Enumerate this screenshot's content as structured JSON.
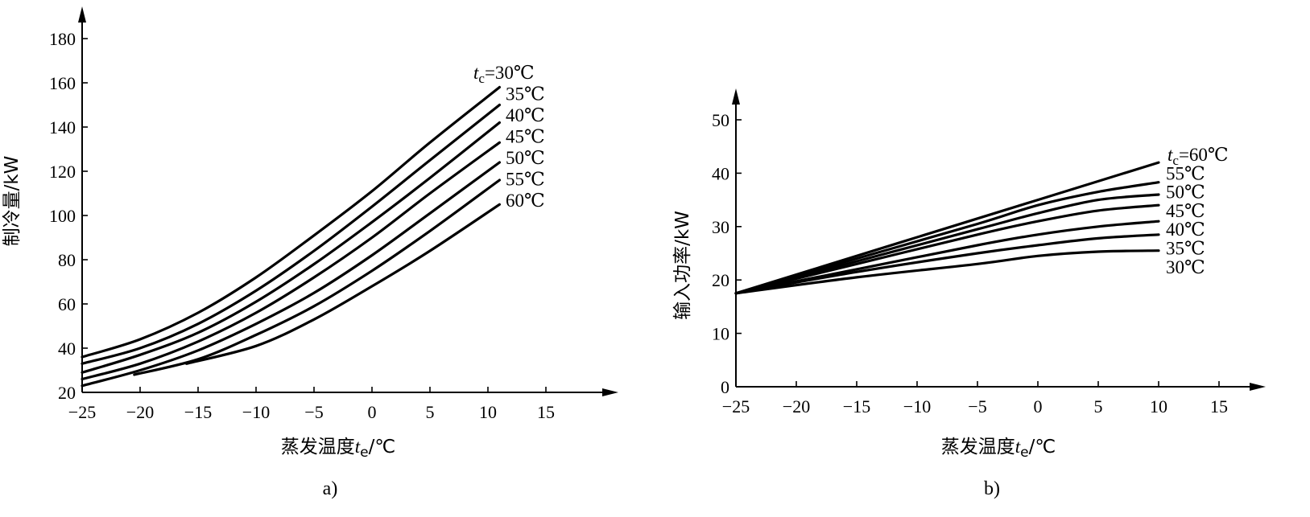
{
  "chart_data": [
    {
      "id": "a",
      "type": "line",
      "caption": "a)",
      "ylabel": "制冷量/kW",
      "xlabel_main": "蒸发温度",
      "xlabel_var": "t",
      "xlabel_sub": "e",
      "xlabel_unit": "/℃",
      "xlim": [
        -25,
        15
      ],
      "ylim": [
        20,
        180
      ],
      "x_ticks": [
        -25,
        -20,
        -15,
        -10,
        -5,
        0,
        5,
        10,
        15
      ],
      "x_tick_labels": [
        "−25",
        "−20",
        "−15",
        "−10",
        "−5",
        "0",
        "5",
        "10",
        "15"
      ],
      "y_ticks": [
        20,
        40,
        60,
        80,
        100,
        120,
        140,
        160,
        180
      ],
      "y_tick_labels": [
        "20",
        "40",
        "60",
        "80",
        "100",
        "120",
        "140",
        "160",
        "180"
      ],
      "series_prefix_var": "t",
      "series_prefix_sub": "c",
      "series_prefix_eq": "=",
      "series": [
        {
          "name": "30℃",
          "x": [
            -25,
            -20,
            -15,
            -10,
            -5,
            0,
            5,
            11
          ],
          "y": [
            36,
            44,
            56,
            72,
            91,
            111,
            133,
            158
          ]
        },
        {
          "name": "35℃",
          "x": [
            -25,
            -20,
            -15,
            -10,
            -5,
            0,
            5,
            11
          ],
          "y": [
            33,
            40,
            51,
            66,
            84,
            104,
            125,
            150
          ]
        },
        {
          "name": "40℃",
          "x": [
            -25,
            -20,
            -15,
            -10,
            -5,
            0,
            5,
            11
          ],
          "y": [
            29,
            37,
            47,
            61,
            78,
            97,
            117,
            142
          ]
        },
        {
          "name": "45℃",
          "x": [
            -25,
            -20,
            -15,
            -10,
            -5,
            0,
            5,
            11
          ],
          "y": [
            26,
            33,
            43,
            56,
            72,
            90,
            110,
            133
          ]
        },
        {
          "name": "50℃",
          "x": [
            -25,
            -20,
            -15,
            -10,
            -5,
            0,
            5,
            11
          ],
          "y": [
            23,
            30,
            39,
            51,
            65,
            82,
            101,
            124
          ]
        },
        {
          "name": "55℃",
          "x": [
            -20.5,
            -15,
            -10,
            -5,
            0,
            5,
            11
          ],
          "y": [
            28,
            35,
            46,
            59,
            75,
            93,
            116
          ]
        },
        {
          "name": "60℃",
          "x": [
            -16,
            -10,
            -5,
            0,
            5,
            11
          ],
          "y": [
            33,
            41,
            53,
            68,
            84,
            105
          ]
        }
      ]
    },
    {
      "id": "b",
      "type": "line",
      "caption": "b)",
      "ylabel": "输入功率/kW",
      "xlabel_main": "蒸发温度",
      "xlabel_var": "t",
      "xlabel_sub": "e",
      "xlabel_unit": "/℃",
      "xlim": [
        -25,
        15
      ],
      "ylim": [
        0,
        50
      ],
      "x_ticks": [
        -25,
        -20,
        -15,
        -10,
        -5,
        0,
        5,
        10,
        15
      ],
      "x_tick_labels": [
        "−25",
        "−20",
        "−15",
        "−10",
        "−5",
        "0",
        "5",
        "10",
        "15"
      ],
      "y_ticks": [
        0,
        10,
        20,
        30,
        40,
        50
      ],
      "y_tick_labels": [
        "0",
        "10",
        "20",
        "30",
        "40",
        "50"
      ],
      "series_prefix_var": "t",
      "series_prefix_sub": "c",
      "series_prefix_eq": "=",
      "series": [
        {
          "name": "60℃",
          "x": [
            -25,
            -15,
            -5,
            0,
            5,
            10
          ],
          "y": [
            17.5,
            24.5,
            31.5,
            35,
            38.5,
            42
          ]
        },
        {
          "name": "55℃",
          "x": [
            -25,
            -15,
            -5,
            0,
            5,
            10
          ],
          "y": [
            17.5,
            24,
            30.5,
            34,
            36.5,
            38.3
          ]
        },
        {
          "name": "50℃",
          "x": [
            -25,
            -15,
            -5,
            0,
            5,
            10
          ],
          "y": [
            17.5,
            23.5,
            29.5,
            32.5,
            35,
            36
          ]
        },
        {
          "name": "45℃",
          "x": [
            -25,
            -15,
            -5,
            0,
            5,
            10
          ],
          "y": [
            17.5,
            23,
            28.5,
            31,
            33,
            34
          ]
        },
        {
          "name": "40℃",
          "x": [
            -25,
            -15,
            -5,
            0,
            5,
            10
          ],
          "y": [
            17.5,
            22,
            26.5,
            28.5,
            30,
            31
          ]
        },
        {
          "name": "35℃",
          "x": [
            -25,
            -15,
            -5,
            0,
            5,
            10
          ],
          "y": [
            17.5,
            21.5,
            25,
            26.5,
            27.8,
            28.5
          ]
        },
        {
          "name": "30℃",
          "x": [
            -25,
            -15,
            -5,
            0,
            5,
            10
          ],
          "y": [
            17.5,
            20.5,
            23,
            24.5,
            25.3,
            25.5
          ]
        }
      ]
    }
  ]
}
